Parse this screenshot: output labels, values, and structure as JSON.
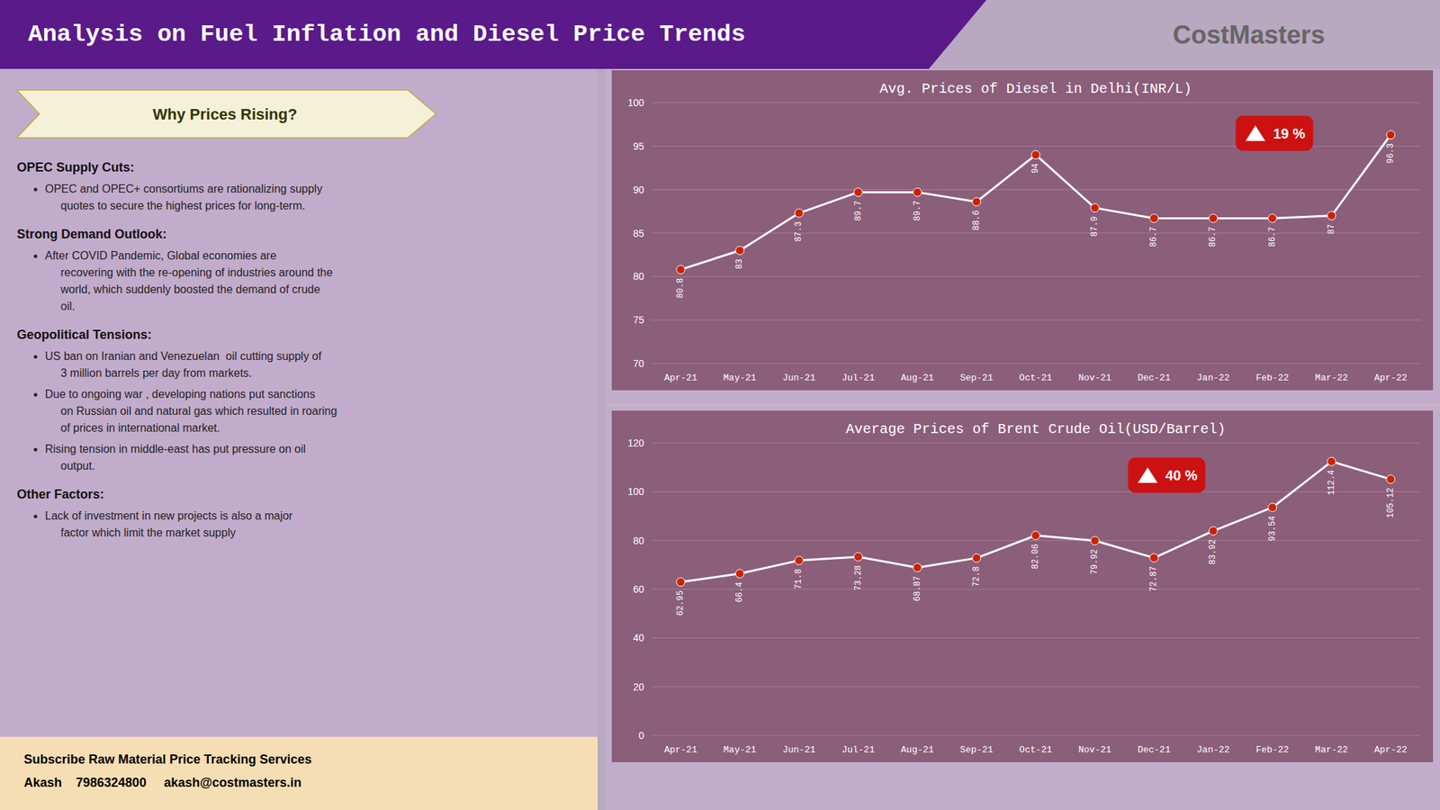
{
  "title": "Analysis on Fuel Inflation and Diesel Price Trends",
  "logo_text": "CostMasters",
  "section_title": "Why Prices Rising?",
  "sections": [
    {
      "header": "OPEC Supply Cuts:",
      "bullets": [
        "OPEC and OPEC+ consortiums are rationalizing supply\n     quotes to secure the highest prices for long-term."
      ]
    },
    {
      "header": "Strong  Demand Outlook:",
      "bullets": [
        "After COVID Pandemic, Global economies are\n     recovering with the re-opening of industries around the\n     world, which suddenly boosted the demand of crude\n     oil."
      ]
    },
    {
      "header": "Geopolitical Tensions:",
      "bullets": [
        "US ban on Iranian and Venezuelan  oil cutting supply of\n     3 million barrels per day from markets.",
        "Due to ongoing war , developing nations put sanctions\n     on Russian oil and natural gas which resulted in roaring\n     of prices in international market.",
        "Rising tension in middle-east has put pressure on oil\n     output."
      ]
    },
    {
      "header": "Other Factors:",
      "bullets": [
        "Lack of investment in new projects is also a major\n     factor which limit the market supply"
      ]
    }
  ],
  "footer_lines": [
    "Subscribe Raw Material Price Tracking Services",
    "Akash    7986324800     akash@costmasters.in"
  ],
  "chart_data": [
    {
      "type": "line",
      "title": "Avg.  Prices of Diesel in Delhi(INR/L)",
      "categories": [
        "Apr-21",
        "May-21",
        "Jun-21",
        "Jul-21",
        "Aug-21",
        "Sep-21",
        "Oct-21",
        "Nov-21",
        "Dec-21",
        "Jan-22",
        "Feb-22",
        "Mar-22",
        "Apr-22"
      ],
      "values": [
        80.8,
        83,
        87.3,
        89.7,
        89.7,
        88.6,
        94,
        87.9,
        86.7,
        86.7,
        86.7,
        87,
        96.3
      ],
      "color": "#ffffff",
      "marker": "circle",
      "ylim": [
        70,
        100
      ],
      "yticks": [
        70,
        75,
        80,
        85,
        90,
        95,
        100
      ],
      "grid": true,
      "data_labels": true,
      "annotation": "19 %"
    },
    {
      "type": "line",
      "title": "Average Prices of Brent Crude Oil(USD/Barrel)",
      "categories": [
        "Apr-21",
        "May-21",
        "Jun-21",
        "Jul-21",
        "Aug-21",
        "Sep-21",
        "Oct-21",
        "Nov-21",
        "Dec-21",
        "Jan-22",
        "Feb-22",
        "Mar-22",
        "Apr-22"
      ],
      "values": [
        62.95,
        66.4,
        71.8,
        73.28,
        68.87,
        72.8,
        82.06,
        79.92,
        72.87,
        83.92,
        93.54,
        112.4,
        105.12
      ],
      "color": "#ffffff",
      "marker": "circle",
      "ylim": [
        0,
        120
      ],
      "yticks": [
        0,
        20,
        40,
        60,
        80,
        100,
        120
      ],
      "grid": true,
      "data_labels": true,
      "annotation": "40 %"
    }
  ]
}
